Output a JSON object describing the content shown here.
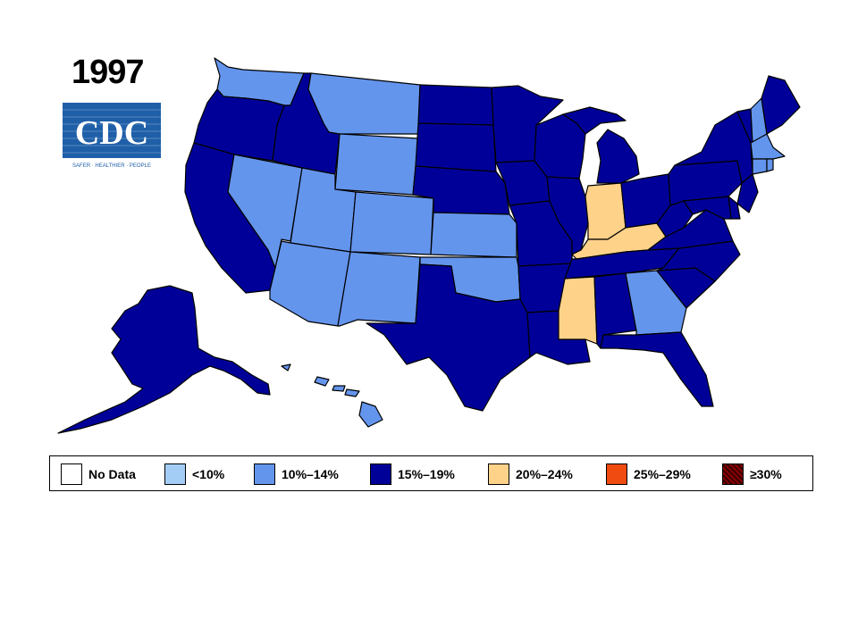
{
  "year": "1997",
  "logo": {
    "text": "CDC",
    "tagline": "SAFER · HEALTHIER · PEOPLE"
  },
  "colors": {
    "no_data": "#ffffff",
    "lt10": "#a4cdf5",
    "c10_14": "#6495ed",
    "c15_19": "#000099",
    "c20_24": "#ffd28a",
    "c25_29": "#f04b10",
    "c30plus": "#8b0000"
  },
  "legend": [
    {
      "label": "No Data",
      "color": "#ffffff"
    },
    {
      "label": "<10%",
      "color": "#a4cdf5"
    },
    {
      "label": "10%–14%",
      "color": "#6495ed"
    },
    {
      "label": "15%–19%",
      "color": "#000099"
    },
    {
      "label": "20%–24%",
      "color": "#ffd28a"
    },
    {
      "label": "25%–29%",
      "color": "#f04b10"
    },
    {
      "label": "≥30%",
      "color": "#8b0000"
    }
  ],
  "states": {
    "WA": "c10_14",
    "OR": "c15_19",
    "CA": "c15_19",
    "NV": "c10_14",
    "ID": "c15_19",
    "MT": "c10_14",
    "WY": "c10_14",
    "UT": "c10_14",
    "AZ": "c10_14",
    "CO": "c10_14",
    "NM": "c10_14",
    "ND": "c15_19",
    "SD": "c15_19",
    "NE": "c15_19",
    "KS": "c10_14",
    "OK": "c10_14",
    "TX": "c15_19",
    "MN": "c15_19",
    "IA": "c15_19",
    "MO": "c15_19",
    "AR": "c15_19",
    "LA": "c15_19",
    "WI": "c15_19",
    "IL": "c15_19",
    "MI": "c15_19",
    "IN": "c20_24",
    "OH": "c15_19",
    "KY": "c20_24",
    "TN": "c15_19",
    "MS": "c20_24",
    "AL": "c15_19",
    "GA": "c10_14",
    "FL": "c15_19",
    "SC": "c15_19",
    "NC": "c15_19",
    "VA": "c15_19",
    "WV": "c15_19",
    "PA": "c15_19",
    "NY": "c15_19",
    "VT": "c15_19",
    "NH": "c10_14",
    "ME": "c15_19",
    "MA": "c10_14",
    "CT": "c10_14",
    "RI": "c10_14",
    "NJ": "c15_19",
    "DE": "c15_19",
    "MD": "c15_19",
    "AK": "c15_19",
    "HI": "c10_14"
  }
}
